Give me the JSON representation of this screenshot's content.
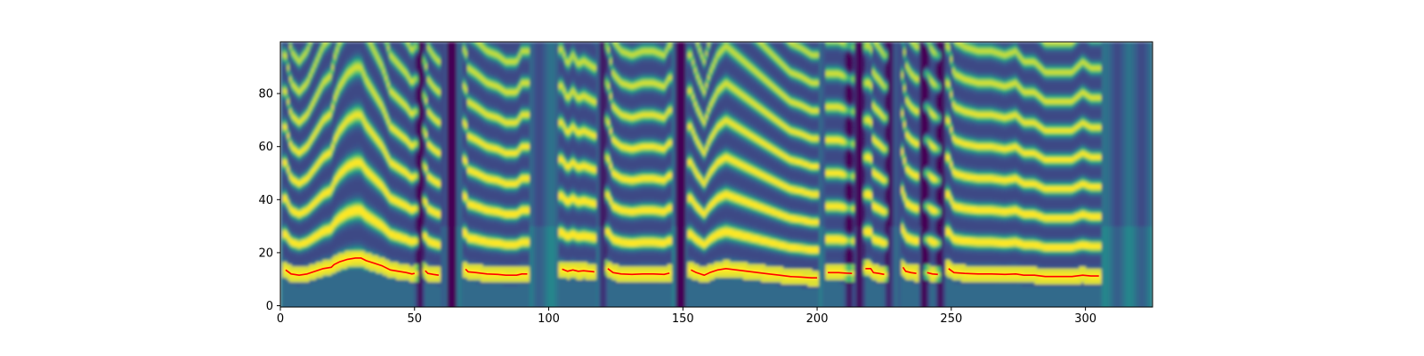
{
  "chart_data": {
    "type": "heatmap",
    "title": "",
    "xlabel": "",
    "ylabel": "",
    "xlim": [
      0,
      325
    ],
    "ylim": [
      0,
      99
    ],
    "x_ticks": [
      0,
      50,
      100,
      150,
      200,
      250,
      300
    ],
    "y_ticks": [
      0,
      20,
      40,
      60,
      80
    ],
    "x_tick_labels": [
      "0",
      "50",
      "100",
      "150",
      "200",
      "250",
      "300"
    ],
    "y_tick_labels": [
      "0",
      "20",
      "40",
      "60",
      "80"
    ],
    "grid": false,
    "colormap": "viridis",
    "heatmap_description_colors": [
      "#440154",
      "#3b528b",
      "#21918c",
      "#5ec962",
      "#fde725"
    ],
    "series": [
      {
        "color": "#ff0000",
        "segments": [
          [
            [
              2,
              13.5
            ],
            [
              4,
              12
            ],
            [
              7,
              11.5
            ],
            [
              10,
              12
            ],
            [
              13,
              13
            ],
            [
              16,
              14
            ],
            [
              19,
              14.5
            ],
            [
              20,
              15.5
            ],
            [
              22,
              16.5
            ],
            [
              25,
              17.5
            ],
            [
              28,
              18
            ],
            [
              30,
              18
            ],
            [
              32,
              17
            ],
            [
              35,
              16
            ],
            [
              38,
              15
            ],
            [
              41,
              13.5
            ],
            [
              44,
              13
            ],
            [
              47,
              12.5
            ],
            [
              49,
              12
            ],
            [
              50,
              12.2
            ]
          ],
          [
            [
              54,
              13.2
            ],
            [
              55,
              12.2
            ],
            [
              57,
              11.8
            ],
            [
              59,
              11.5
            ]
          ],
          [
            [
              69,
              13.8
            ],
            [
              70,
              12.8
            ],
            [
              73,
              12.5
            ],
            [
              77,
              12
            ],
            [
              81,
              11.8
            ],
            [
              84,
              11.5
            ],
            [
              88,
              11.5
            ],
            [
              90,
              12
            ],
            [
              92,
              12
            ]
          ],
          [
            [
              105,
              13.8
            ],
            [
              107,
              13
            ],
            [
              109,
              13.5
            ],
            [
              111,
              13
            ],
            [
              113,
              13.2
            ],
            [
              115,
              13
            ],
            [
              117,
              12.8
            ]
          ],
          [
            [
              122,
              14
            ],
            [
              124,
              12.5
            ],
            [
              127,
              12
            ],
            [
              131,
              11.8
            ],
            [
              135,
              12
            ],
            [
              139,
              12
            ],
            [
              143,
              11.8
            ],
            [
              145,
              12.3
            ]
          ],
          [
            [
              153,
              13.5
            ],
            [
              155,
              12.5
            ],
            [
              157,
              11.8
            ],
            [
              158,
              11.5
            ],
            [
              160,
              12.5
            ],
            [
              163,
              13.5
            ],
            [
              166,
              14
            ],
            [
              170,
              13.5
            ],
            [
              174,
              13
            ],
            [
              178,
              12.5
            ],
            [
              182,
              12
            ],
            [
              186,
              11.5
            ],
            [
              190,
              11
            ],
            [
              194,
              10.8
            ],
            [
              198,
              10.5
            ],
            [
              200,
              10.5
            ]
          ],
          [
            [
              204,
              12.5
            ],
            [
              208,
              12.5
            ],
            [
              211,
              12.3
            ],
            [
              213,
              12.2
            ]
          ],
          [
            [
              218,
              14
            ],
            [
              220,
              14
            ],
            [
              221,
              12.5
            ],
            [
              223,
              12.2
            ],
            [
              225,
              11.8
            ]
          ],
          [
            [
              232,
              14.5
            ],
            [
              233,
              13
            ],
            [
              235,
              12.5
            ],
            [
              237,
              12.2
            ]
          ],
          [
            [
              241,
              12.5
            ],
            [
              243,
              12
            ],
            [
              245,
              11.8
            ]
          ],
          [
            [
              249,
              14
            ],
            [
              251,
              12.5
            ],
            [
              255,
              12.2
            ],
            [
              260,
              12
            ],
            [
              265,
              12
            ],
            [
              270,
              11.8
            ],
            [
              274,
              12
            ],
            [
              277,
              11.5
            ],
            [
              281,
              11.5
            ],
            [
              285,
              11
            ],
            [
              288,
              11
            ],
            [
              291,
              11
            ],
            [
              295,
              11
            ],
            [
              299,
              11.5
            ],
            [
              302,
              11.2
            ],
            [
              305,
              11.2
            ]
          ]
        ]
      }
    ]
  }
}
